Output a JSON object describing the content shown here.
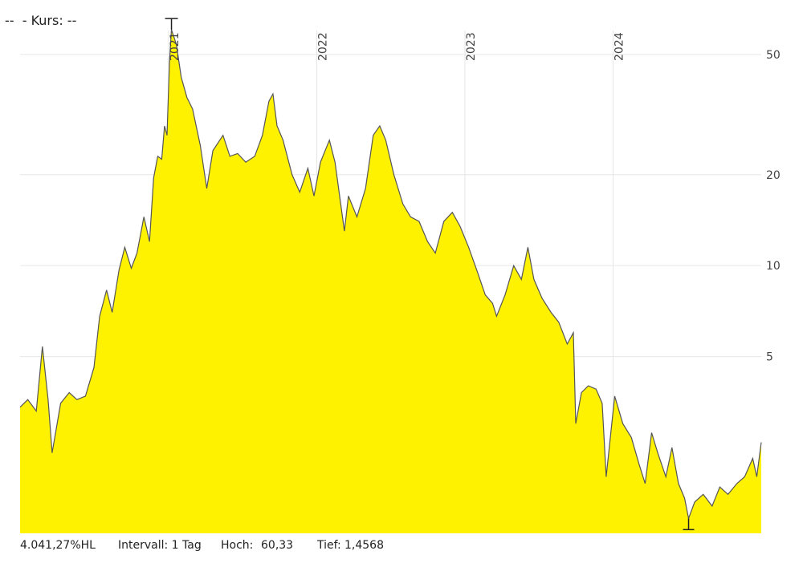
{
  "header": {
    "prefix": "--",
    "label": "- Kurs: --"
  },
  "footer": {
    "performance": "4.041,27%HL",
    "interval": "Intervall: 1 Tag",
    "high_label": "Hoch:",
    "high_value": "60,33",
    "low_label": "Tief:",
    "low_value": "1,4568"
  },
  "colors": {
    "fill": "#fff200",
    "line": "#555555",
    "grid": "#e6e6e6",
    "marker": "#222222"
  },
  "chart_data": {
    "type": "area",
    "y_scale": "log",
    "grid": true,
    "x_range": [
      "2020-01-01",
      "2024-12-31"
    ],
    "y_range": [
      1.3,
      60
    ],
    "x_ticks": [
      {
        "date": "2021-01-01",
        "label": "2021"
      },
      {
        "date": "2022-01-01",
        "label": "2022"
      },
      {
        "date": "2023-01-01",
        "label": "2023"
      },
      {
        "date": "2024-01-01",
        "label": "2024"
      }
    ],
    "y_ticks": [
      5,
      10,
      20,
      50
    ],
    "high_marker": {
      "date": "2021-01-08",
      "value": 60.33
    },
    "low_marker": {
      "date": "2024-07-05",
      "value": 1.4568
    },
    "series": [
      {
        "values": [
          [
            "2020-01-01",
            3.4
          ],
          [
            "2020-01-20",
            3.6
          ],
          [
            "2020-02-10",
            3.3
          ],
          [
            "2020-02-25",
            5.4
          ],
          [
            "2020-03-10",
            3.6
          ],
          [
            "2020-03-20",
            2.4
          ],
          [
            "2020-04-10",
            3.5
          ],
          [
            "2020-05-01",
            3.8
          ],
          [
            "2020-05-20",
            3.6
          ],
          [
            "2020-06-10",
            3.7
          ],
          [
            "2020-07-01",
            4.6
          ],
          [
            "2020-07-15",
            6.8
          ],
          [
            "2020-08-01",
            8.3
          ],
          [
            "2020-08-15",
            7.0
          ],
          [
            "2020-09-01",
            9.7
          ],
          [
            "2020-09-15",
            11.5
          ],
          [
            "2020-10-01",
            9.8
          ],
          [
            "2020-10-15",
            11.0
          ],
          [
            "2020-11-01",
            14.5
          ],
          [
            "2020-11-15",
            12.0
          ],
          [
            "2020-11-25",
            19.5
          ],
          [
            "2020-12-05",
            23.0
          ],
          [
            "2020-12-15",
            22.5
          ],
          [
            "2020-12-22",
            29.0
          ],
          [
            "2020-12-28",
            27.0
          ],
          [
            "2021-01-03",
            47.0
          ],
          [
            "2021-01-08",
            60.33
          ],
          [
            "2021-01-20",
            54.0
          ],
          [
            "2021-02-01",
            42.0
          ],
          [
            "2021-02-15",
            36.0
          ],
          [
            "2021-03-01",
            33.0
          ],
          [
            "2021-03-20",
            25.0
          ],
          [
            "2021-04-05",
            18.0
          ],
          [
            "2021-04-20",
            24.0
          ],
          [
            "2021-05-15",
            27.0
          ],
          [
            "2021-06-01",
            23.0
          ],
          [
            "2021-06-20",
            23.5
          ],
          [
            "2021-07-10",
            22.0
          ],
          [
            "2021-08-01",
            23.0
          ],
          [
            "2021-08-20",
            27.0
          ],
          [
            "2021-09-05",
            35.0
          ],
          [
            "2021-09-15",
            37.0
          ],
          [
            "2021-09-25",
            29.0
          ],
          [
            "2021-10-10",
            26.0
          ],
          [
            "2021-11-01",
            20.0
          ],
          [
            "2021-11-20",
            17.5
          ],
          [
            "2021-12-10",
            21.0
          ],
          [
            "2021-12-25",
            17.0
          ],
          [
            "2022-01-10",
            22.0
          ],
          [
            "2022-02-01",
            26.0
          ],
          [
            "2022-02-15",
            22.0
          ],
          [
            "2022-03-01",
            16.0
          ],
          [
            "2022-03-10",
            13.0
          ],
          [
            "2022-03-20",
            17.0
          ],
          [
            "2022-04-10",
            14.5
          ],
          [
            "2022-05-01",
            18.0
          ],
          [
            "2022-05-20",
            27.0
          ],
          [
            "2022-06-05",
            29.0
          ],
          [
            "2022-06-20",
            26.0
          ],
          [
            "2022-07-10",
            20.0
          ],
          [
            "2022-08-01",
            16.0
          ],
          [
            "2022-08-20",
            14.5
          ],
          [
            "2022-09-10",
            14.0
          ],
          [
            "2022-10-01",
            12.0
          ],
          [
            "2022-10-20",
            11.0
          ],
          [
            "2022-11-10",
            14.0
          ],
          [
            "2022-12-01",
            15.0
          ],
          [
            "2022-12-20",
            13.5
          ],
          [
            "2023-01-10",
            11.5
          ],
          [
            "2023-02-01",
            9.5
          ],
          [
            "2023-02-20",
            8.0
          ],
          [
            "2023-03-10",
            7.5
          ],
          [
            "2023-03-20",
            6.8
          ],
          [
            "2023-04-10",
            8.0
          ],
          [
            "2023-05-01",
            10.0
          ],
          [
            "2023-05-20",
            9.0
          ],
          [
            "2023-06-05",
            11.5
          ],
          [
            "2023-06-20",
            9.0
          ],
          [
            "2023-07-10",
            7.8
          ],
          [
            "2023-08-01",
            7.0
          ],
          [
            "2023-08-20",
            6.5
          ],
          [
            "2023-09-10",
            5.5
          ],
          [
            "2023-09-25",
            6.0
          ],
          [
            "2023-10-01",
            3.0
          ],
          [
            "2023-10-15",
            3.8
          ],
          [
            "2023-11-01",
            4.0
          ],
          [
            "2023-11-20",
            3.9
          ],
          [
            "2023-12-05",
            3.5
          ],
          [
            "2023-12-15",
            2.0
          ],
          [
            "2024-01-05",
            3.7
          ],
          [
            "2024-01-25",
            3.0
          ],
          [
            "2024-02-15",
            2.7
          ],
          [
            "2024-03-05",
            2.2
          ],
          [
            "2024-03-20",
            1.9
          ],
          [
            "2024-04-05",
            2.8
          ],
          [
            "2024-04-20",
            2.4
          ],
          [
            "2024-05-10",
            2.0
          ],
          [
            "2024-05-25",
            2.5
          ],
          [
            "2024-06-10",
            1.9
          ],
          [
            "2024-06-25",
            1.7
          ],
          [
            "2024-07-05",
            1.4568
          ],
          [
            "2024-07-20",
            1.65
          ],
          [
            "2024-08-10",
            1.75
          ],
          [
            "2024-09-01",
            1.6
          ],
          [
            "2024-09-20",
            1.85
          ],
          [
            "2024-10-10",
            1.75
          ],
          [
            "2024-11-01",
            1.9
          ],
          [
            "2024-11-20",
            2.0
          ],
          [
            "2024-12-10",
            2.3
          ],
          [
            "2024-12-20",
            2.0
          ],
          [
            "2024-12-31",
            2.6
          ]
        ]
      }
    ]
  }
}
